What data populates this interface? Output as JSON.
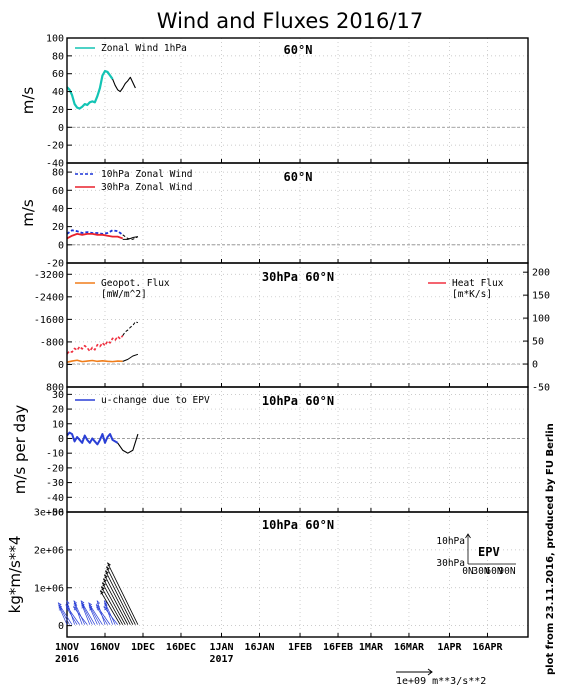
{
  "title": "Wind and Fluxes 2016/17",
  "credit": "plot from 23.11.2016, produced by FU Berlin",
  "colors": {
    "cyan": "#13c4b4",
    "blue_dash": "#1a34d8",
    "red": "#e8212b",
    "orange": "#f07d1a",
    "red_flux": "#f03040",
    "blue": "#2a3fd6",
    "black": "#000000",
    "grid": "#bbbbbb"
  },
  "chart_data": [
    {
      "type": "line",
      "location": "60°N",
      "ylabel": "m/s",
      "ylim": [
        -40,
        100
      ],
      "yticks": [
        "100",
        "80",
        "60",
        "40",
        "20",
        "0",
        "-20",
        "-40"
      ],
      "grid": true,
      "legend_placement": "top-left",
      "series": [
        {
          "name": "Zonal Wind 1hPa",
          "color": "cyan",
          "x_days": [
            0,
            1,
            2,
            3,
            4,
            5,
            6,
            7,
            8,
            9,
            10,
            11,
            12,
            13,
            14,
            15,
            16,
            17,
            18
          ],
          "values": [
            45,
            42,
            36,
            26,
            22,
            21,
            23,
            26,
            25,
            28,
            29,
            28,
            35,
            44,
            58,
            63,
            62,
            58,
            54
          ]
        },
        {
          "name": "",
          "color": "black",
          "x_days": [
            18,
            19,
            20,
            21,
            22,
            23,
            24,
            25,
            26,
            27
          ],
          "values": [
            54,
            47,
            42,
            40,
            44,
            49,
            52,
            56,
            50,
            44
          ]
        }
      ]
    },
    {
      "type": "line",
      "location": "60°N",
      "ylabel": "m/s",
      "ylim": [
        -20,
        90
      ],
      "yticks": [
        "80",
        "60",
        "40",
        "20",
        "0",
        "-20"
      ],
      "grid": true,
      "legend_placement": "top-left",
      "series": [
        {
          "name": "10hPa Zonal Wind",
          "color": "blue_dash",
          "x_days": [
            0,
            2,
            4,
            6,
            8,
            10,
            12,
            14,
            16,
            18,
            20,
            22
          ],
          "values": [
            12,
            16,
            15,
            13,
            14,
            13,
            13,
            12,
            13,
            16,
            15,
            11
          ]
        },
        {
          "name": "30hPa Zonal Wind",
          "color": "red",
          "x_days": [
            0,
            2,
            4,
            6,
            8,
            10,
            12,
            14,
            16,
            18,
            20,
            22
          ],
          "values": [
            7,
            10,
            12,
            11,
            12,
            12,
            11,
            11,
            10,
            9,
            9,
            7
          ]
        },
        {
          "name": "",
          "color": "black",
          "x_days": [
            22,
            24,
            26,
            28
          ],
          "values": [
            6,
            6,
            8,
            9
          ]
        },
        {
          "name": "",
          "color": "black",
          "x_days": [
            22,
            24,
            26,
            28
          ],
          "values": [
            11,
            7,
            6,
            9
          ]
        }
      ]
    },
    {
      "type": "line",
      "location": "30hPa 60°N",
      "left_ylim": [
        800,
        -3600
      ],
      "left_yticks": [
        "-3200",
        "-2400",
        "-1600",
        "-800",
        "0",
        "800"
      ],
      "right_ylim": [
        -50,
        220
      ],
      "right_yticks": [
        "200",
        "150",
        "100",
        "50",
        "0",
        "-50"
      ],
      "grid": true,
      "series": [
        {
          "name": "Geopot. Flux [mW/m^2]",
          "color": "orange",
          "axis": "left",
          "x_days": [
            0,
            2,
            4,
            6,
            8,
            10,
            12,
            14,
            16,
            18,
            20,
            22
          ],
          "values": [
            -80,
            -120,
            -150,
            -100,
            -120,
            -140,
            -110,
            -130,
            -110,
            -100,
            -120,
            -110
          ]
        },
        {
          "name": "",
          "color": "black",
          "axis": "left",
          "x_days": [
            22,
            24,
            26,
            28
          ],
          "values": [
            -110,
            -180,
            -300,
            -360
          ]
        },
        {
          "name": "Heat Flux [m*K/s]",
          "color": "red_flux",
          "axis": "right",
          "x_days": [
            0,
            1,
            2,
            3,
            4,
            5,
            6,
            7,
            8,
            9,
            10,
            11,
            12,
            13,
            14,
            15,
            16,
            17,
            18,
            19,
            20,
            21,
            22
          ],
          "values": [
            22,
            28,
            26,
            34,
            30,
            38,
            33,
            40,
            35,
            28,
            36,
            31,
            42,
            38,
            46,
            40,
            50,
            46,
            56,
            52,
            60,
            55,
            62
          ]
        },
        {
          "name": "",
          "color": "black",
          "axis": "right",
          "x_days": [
            22,
            23,
            24,
            25,
            26,
            27,
            28
          ],
          "values": [
            62,
            70,
            74,
            80,
            84,
            92,
            90
          ]
        }
      ]
    },
    {
      "type": "line",
      "location": "10hPa 60°N",
      "ylabel": "m/s per day",
      "ylim": [
        -50,
        35
      ],
      "yticks": [
        "30",
        "20",
        "10",
        "0",
        "-10",
        "-20",
        "-30",
        "-40",
        "-50"
      ],
      "grid": true,
      "legend_placement": "top-left",
      "series": [
        {
          "name": "u-change due to EPV",
          "color": "blue",
          "x_days": [
            0,
            1,
            2,
            3,
            4,
            5,
            6,
            7,
            8,
            9,
            10,
            11,
            12,
            13,
            14,
            15,
            16,
            17,
            18,
            19,
            20
          ],
          "values": [
            2,
            4,
            3,
            -2,
            1,
            -1,
            -3,
            2,
            -1,
            -3,
            0,
            -2,
            -4,
            -1,
            3,
            -3,
            1,
            3,
            -1,
            -2,
            -3
          ]
        },
        {
          "name": "",
          "color": "black",
          "x_days": [
            20,
            22,
            24,
            26,
            28
          ],
          "values": [
            -3,
            -8,
            -10,
            -8,
            3
          ]
        }
      ]
    },
    {
      "type": "vector",
      "location": "10hPa 60°N",
      "ylabel": "kg*m/s**4",
      "ylim": [
        -0.3,
        3.0
      ],
      "yticks": [
        "3e+06",
        "2e+06",
        "1e+06",
        "0"
      ],
      "inset": {
        "label": "EPV",
        "y_top": "10hPa",
        "y_bottom": "30hPa",
        "x_labels": [
          "0N",
          "30N",
          "60N",
          "90N"
        ]
      },
      "blue_vectors_x_days": [
        0,
        1,
        2,
        3,
        4,
        5,
        6,
        7,
        8,
        9,
        10,
        11,
        12,
        13,
        14,
        15,
        16,
        17,
        18,
        19,
        20
      ],
      "black_vectors_x_days": [
        21,
        22,
        23,
        24,
        25,
        26,
        27,
        28
      ],
      "scale_label": "1e+09  m**3/s**2"
    }
  ],
  "xaxis": {
    "ticks": [
      {
        "label": "1NOV",
        "sub": "2016",
        "day": 0
      },
      {
        "label": "16NOV",
        "sub": "",
        "day": 15
      },
      {
        "label": "1DEC",
        "sub": "",
        "day": 30
      },
      {
        "label": "16DEC",
        "sub": "",
        "day": 45
      },
      {
        "label": "1JAN",
        "sub": "2017",
        "day": 61
      },
      {
        "label": "16JAN",
        "sub": "",
        "day": 76
      },
      {
        "label": "1FEB",
        "sub": "",
        "day": 92
      },
      {
        "label": "16FEB",
        "sub": "",
        "day": 107
      },
      {
        "label": "1MAR",
        "sub": "",
        "day": 120
      },
      {
        "label": "16MAR",
        "sub": "",
        "day": 135
      },
      {
        "label": "1APR",
        "sub": "",
        "day": 151
      },
      {
        "label": "16APR",
        "sub": "",
        "day": 166
      }
    ],
    "range_days": [
      0,
      182
    ]
  }
}
